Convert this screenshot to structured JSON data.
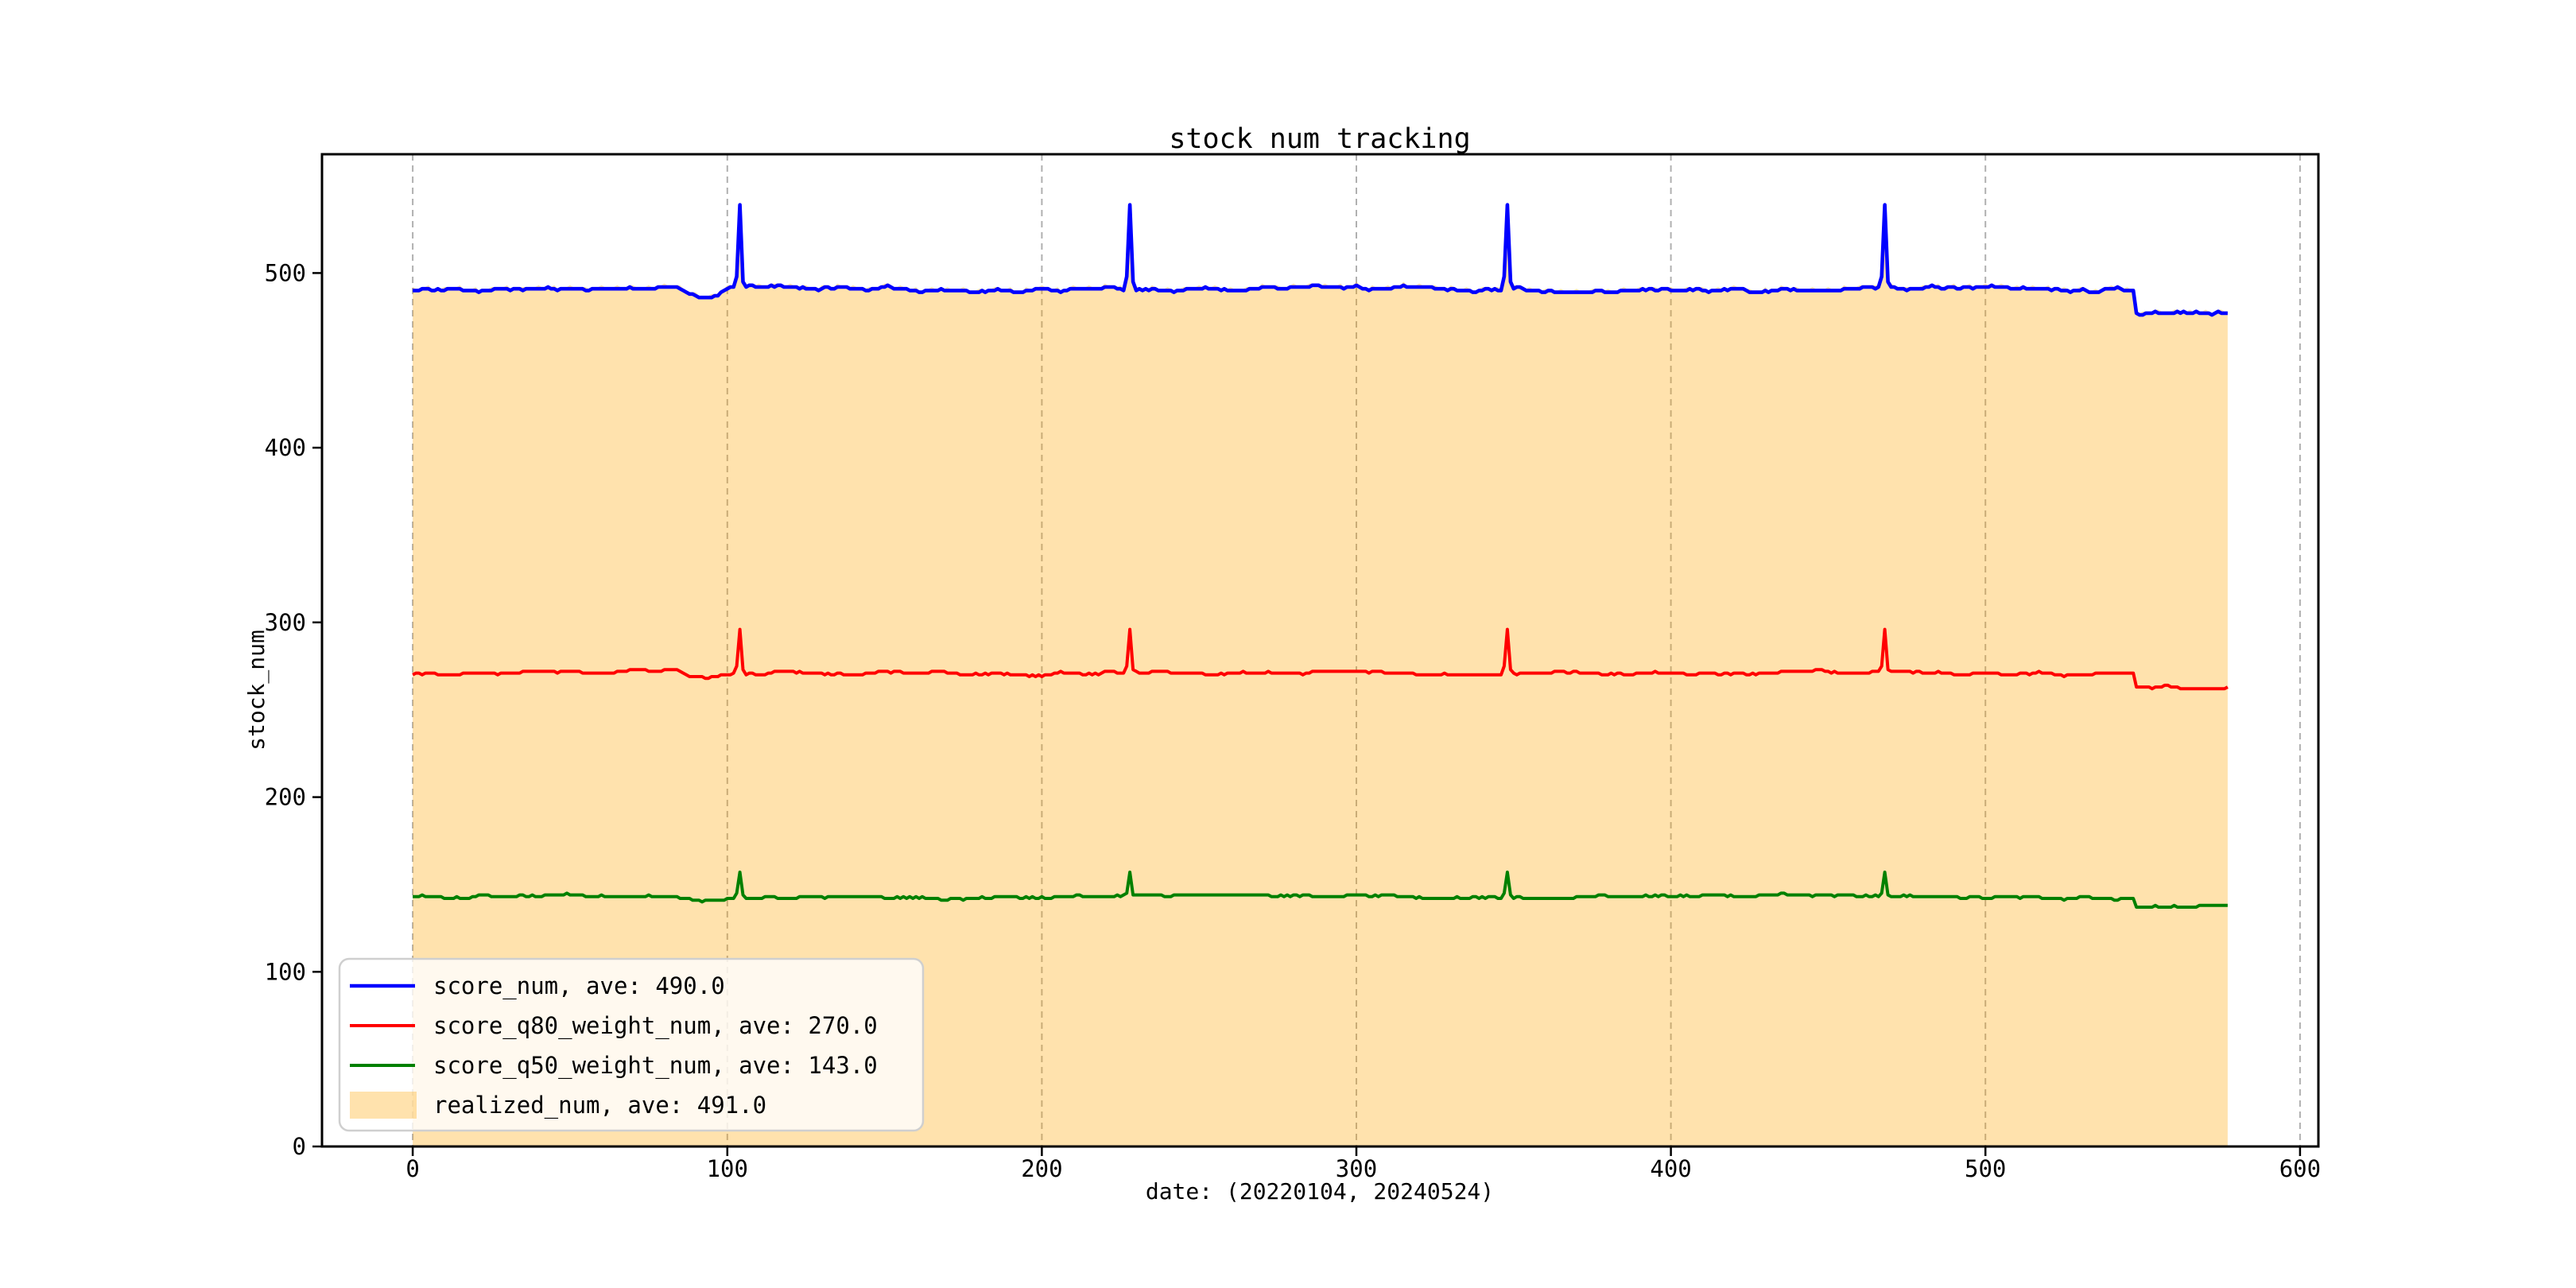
{
  "figure": {
    "background": "#ffffff"
  },
  "chart_data": {
    "type": "line",
    "title": "stock num tracking",
    "xlabel": "date: (20220104, 20240524)",
    "ylabel": "stock_num",
    "xlim": [
      -28.85,
      605.85
    ],
    "ylim": [
      0,
      568
    ],
    "xticks": [
      0,
      100,
      200,
      300,
      400,
      500,
      600
    ],
    "yticks": [
      0,
      100,
      200,
      300,
      400,
      500
    ],
    "grid": {
      "axis": "x",
      "linestyle": "dashed",
      "color": "#b0b0b0"
    },
    "x_start": 0,
    "x_end": 577,
    "spike_x": [
      104,
      228,
      348,
      468
    ],
    "step_x": 548,
    "legend": {
      "position": "lower left",
      "background": "#ffffff",
      "opacity": 0.8,
      "border_color": "#cfcfcf"
    },
    "series": [
      {
        "name": "score_num",
        "label": "score_num, ave: 490.0",
        "ave": 490.0,
        "type": "line",
        "color": "#0000ff",
        "base": 491,
        "spike_peak": 539,
        "after_step": 478,
        "dip": 5,
        "noise_amp": 1.7,
        "line_width": 4.6
      },
      {
        "name": "score_q80_weight_num",
        "label": "score_q80_weight_num, ave: 270.0",
        "ave": 270.0,
        "type": "line",
        "color": "#ff0000",
        "base": 271,
        "spike_peak": 296,
        "after_step": 263,
        "dip": 3,
        "noise_amp": 1.4,
        "line_width": 4.0
      },
      {
        "name": "score_q50_weight_num",
        "label": "score_q50_weight_num, ave: 143.0",
        "ave": 143.0,
        "type": "line",
        "color": "#008000",
        "base": 143,
        "spike_peak": 157,
        "after_step": 138,
        "dip": 2,
        "noise_amp": 1.1,
        "line_width": 4.0
      },
      {
        "name": "realized_num",
        "label": "realized_num, ave: 491.0",
        "ave": 491.0,
        "type": "area",
        "color": "#ffa500",
        "fill_opacity": 0.32,
        "base": 492,
        "spike_peak": 541,
        "after_step": 480,
        "dip": 5,
        "noise_amp": 1.7
      }
    ]
  }
}
